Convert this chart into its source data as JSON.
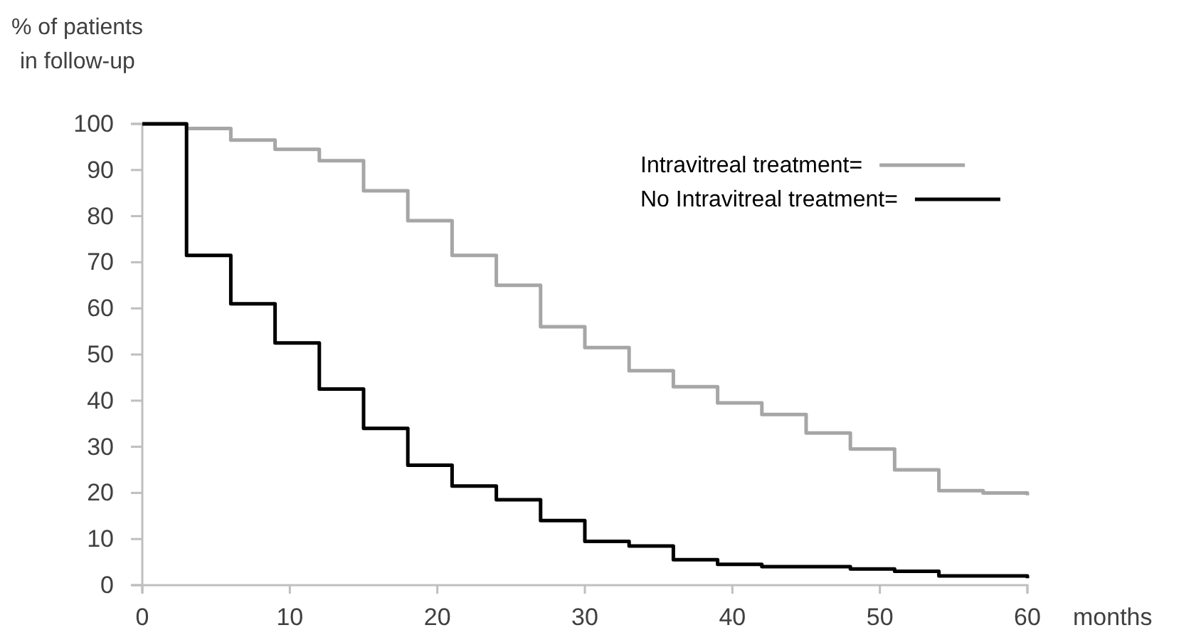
{
  "chart_data": {
    "type": "step",
    "ylabel": "% of patients\nin follow-up",
    "xlabel": "months",
    "x": [
      0,
      3,
      6,
      9,
      12,
      15,
      18,
      21,
      24,
      27,
      30,
      33,
      36,
      39,
      42,
      45,
      48,
      51,
      54,
      57,
      60
    ],
    "series": [
      {
        "name": "Intravitreal treatment=",
        "color": "#a6a6a6",
        "values": [
          100,
          99,
          96.5,
          94.5,
          92,
          85.5,
          79,
          71.5,
          65,
          56,
          51.5,
          46.5,
          43,
          39.5,
          37,
          33,
          29.5,
          25,
          20.5,
          20,
          19.5
        ]
      },
      {
        "name": "No Intravitreal treatment=",
        "color": "#000000",
        "values": [
          100,
          71.5,
          61,
          52.5,
          42.5,
          34,
          26,
          21.5,
          18.5,
          14,
          9.5,
          8.5,
          5.5,
          4.5,
          4,
          4,
          3.5,
          3,
          2,
          2,
          1.5
        ]
      }
    ],
    "xlim": [
      0,
      60
    ],
    "xticks": [
      0,
      10,
      20,
      30,
      40,
      50,
      60
    ],
    "ylim": [
      0,
      100
    ],
    "yticks": [
      0,
      10,
      20,
      30,
      40,
      50,
      60,
      70,
      80,
      90,
      100
    ],
    "grid": false,
    "legend": "top right",
    "marker": "none"
  }
}
